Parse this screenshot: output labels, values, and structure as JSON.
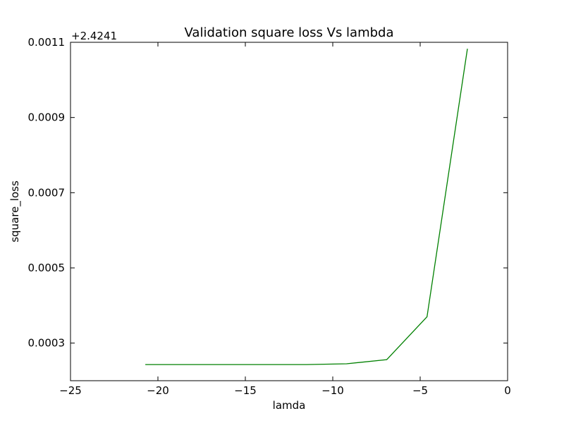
{
  "chart_data": {
    "type": "line",
    "title": "Validation square loss Vs lambda",
    "xlabel": "lamda",
    "ylabel": "square_loss",
    "offset_label": "+2.4241",
    "xlim": [
      -25,
      0
    ],
    "ylim": [
      0.0002,
      0.0011
    ],
    "xticks": [
      -25,
      -20,
      -15,
      -10,
      -5,
      0
    ],
    "xtick_labels": [
      "−25",
      "−20",
      "−15",
      "−10",
      "−5",
      "0"
    ],
    "yticks": [
      0.0003,
      0.0005,
      0.0007,
      0.0009,
      0.0011
    ],
    "ytick_labels": [
      "0.0003",
      "0.0005",
      "0.0007",
      "0.0009",
      "0.0011"
    ],
    "grid": false,
    "series": [
      {
        "color": "#008000",
        "x": [
          -20.72,
          -18.42,
          -16.12,
          -13.82,
          -11.51,
          -9.21,
          -6.91,
          -4.61,
          -2.3
        ],
        "y": [
          0.000243,
          0.000243,
          0.000243,
          0.000243,
          0.000243,
          0.000245,
          0.000256,
          0.00037,
          0.001083
        ]
      }
    ]
  }
}
